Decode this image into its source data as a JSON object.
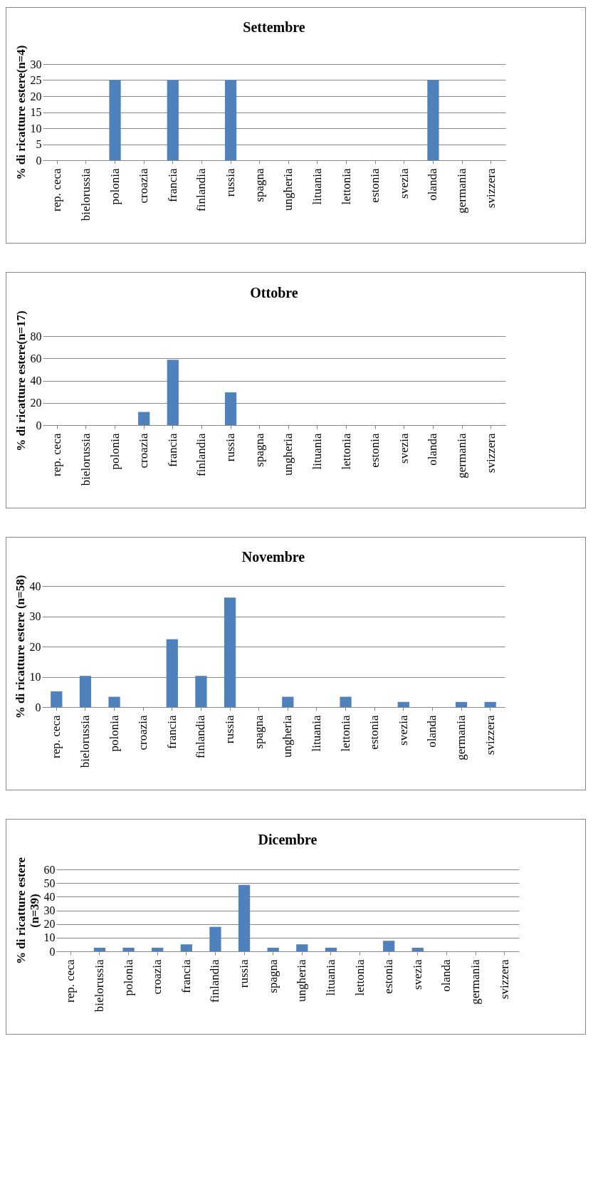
{
  "chart_data": [
    {
      "type": "bar",
      "title": "Settembre",
      "ylabel": "% di ricatture estere(n=4)",
      "categories": [
        "rep. ceca",
        "bielorussia",
        "polonia",
        "croazia",
        "francia",
        "finlandia",
        "russia",
        "spagna",
        "ungheria",
        "lituania",
        "lettonia",
        "estonia",
        "svezia",
        "olanda",
        "germania",
        "svizzera"
      ],
      "values": [
        0,
        0,
        25,
        0,
        25,
        0,
        25,
        0,
        0,
        0,
        0,
        0,
        0,
        25,
        0,
        0
      ],
      "color": "#4f81bd",
      "ylim": [
        0,
        30
      ],
      "yticks": [
        0,
        5,
        10,
        15,
        20,
        25,
        30
      ],
      "grid": "y"
    },
    {
      "type": "bar",
      "title": "Ottobre",
      "ylabel": "% di ricatture estere(n=17)",
      "categories": [
        "rep. ceca",
        "bielorussia",
        "polonia",
        "croazia",
        "francia",
        "finlandia",
        "russia",
        "spagna",
        "ungheria",
        "lituania",
        "lettonia",
        "estonia",
        "svezia",
        "olanda",
        "germania",
        "svizzera"
      ],
      "values": [
        0,
        0,
        0,
        11.8,
        58.8,
        0,
        29.4,
        0,
        0,
        0,
        0,
        0,
        0,
        0,
        0,
        0
      ],
      "color": "#4f81bd",
      "ylim": [
        0,
        80
      ],
      "yticks": [
        0,
        20,
        40,
        60,
        80
      ],
      "grid": "y"
    },
    {
      "type": "bar",
      "title": "Novembre",
      "ylabel": "% di ricatture estere (n=58)",
      "categories": [
        "rep. ceca",
        "bielorussia",
        "polonia",
        "croazia",
        "francia",
        "finlandia",
        "russia",
        "spagna",
        "ungheria",
        "lituania",
        "lettonia",
        "estonia",
        "svezia",
        "olanda",
        "germania",
        "svizzera"
      ],
      "values": [
        5.2,
        10.3,
        3.4,
        0,
        22.4,
        10.3,
        36.2,
        0,
        3.4,
        0,
        3.4,
        0,
        1.7,
        0,
        1.7,
        1.7
      ],
      "color": "#4f81bd",
      "ylim": [
        0,
        40
      ],
      "yticks": [
        0,
        10,
        20,
        30,
        40
      ],
      "grid": "y"
    },
    {
      "type": "bar",
      "title": "Dicembre",
      "ylabel": "% di ricatture estere (n=39)",
      "categories": [
        "rep. ceca",
        "bielorussia",
        "polonia",
        "croazia",
        "francia",
        "finlandia",
        "russia",
        "spagna",
        "ungheria",
        "lituania",
        "lettonia",
        "estonia",
        "svezia",
        "olanda",
        "germania",
        "svizzera"
      ],
      "values": [
        0,
        2.6,
        2.6,
        2.6,
        5.1,
        17.9,
        48.7,
        2.6,
        5.1,
        2.6,
        0,
        7.7,
        2.6,
        0,
        0,
        0
      ],
      "color": "#4f81bd",
      "ylim": [
        0,
        60
      ],
      "yticks": [
        0,
        10,
        20,
        30,
        40,
        50,
        60
      ],
      "grid": "y"
    }
  ]
}
